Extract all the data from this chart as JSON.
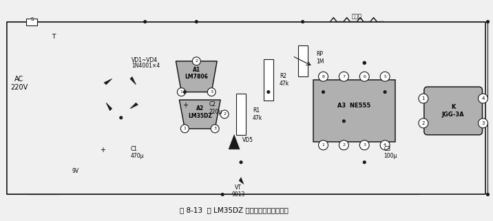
{
  "title": "图 8-13  用 LM35DZ 制作的家禽孵化箱电路",
  "bg_color": "#f0f0f0",
  "line_color": "#1a1a1a",
  "comp_fill": "#b0b0b0",
  "white": "#ffffff",
  "fig_width": 7.16,
  "fig_height": 3.21,
  "dpi": 100,
  "ac_label": "AC\n220V",
  "t_label": "T",
  "v9_label": "9V",
  "bridge_top": "VD1~VD4",
  "bridge_bot": "1N4001×4",
  "c1_label": "C1\n470μ",
  "a1_label": "A1\nLM7806",
  "c2_label": "C2\n220μ",
  "a2_label": "A2\nLM35DZ",
  "r1_label": "R1\n47k",
  "r2_label": "R2\n47k",
  "vd5_label": "VD5",
  "vt_label": "VT\n9013",
  "ne555_label": "A3  NE555",
  "rp_label": "RP\n1M",
  "c3_label": "C3\n100μ",
  "k_label": "K\nJGG-3A",
  "heater_label": "电热丝"
}
